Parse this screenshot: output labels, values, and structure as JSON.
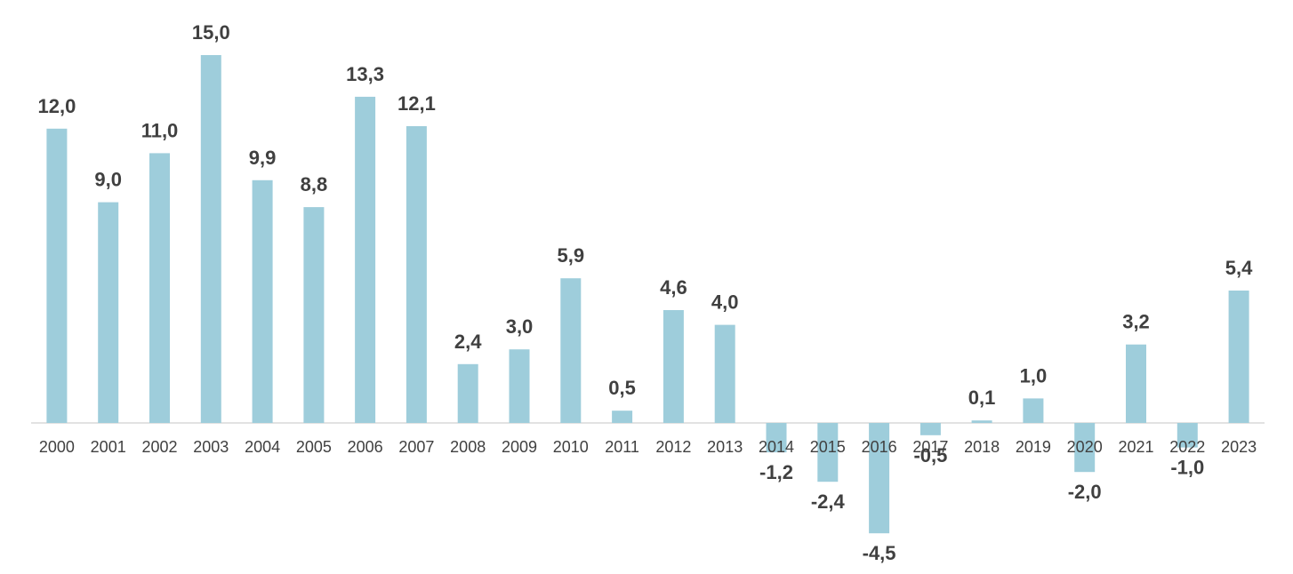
{
  "chart_data": {
    "type": "bar",
    "title": "",
    "xlabel": "",
    "ylabel": "",
    "categories": [
      "2000",
      "2001",
      "2002",
      "2003",
      "2004",
      "2005",
      "2006",
      "2007",
      "2008",
      "2009",
      "2010",
      "2011",
      "2012",
      "2013",
      "2014",
      "2015",
      "2016",
      "2017",
      "2018",
      "2019",
      "2020",
      "2021",
      "2022",
      "2023"
    ],
    "values": [
      12.0,
      9.0,
      11.0,
      15.0,
      9.9,
      8.8,
      13.3,
      12.1,
      2.4,
      3.0,
      5.9,
      0.5,
      4.6,
      4.0,
      -1.2,
      -2.4,
      -4.5,
      -0.5,
      0.1,
      1.0,
      -2.0,
      3.2,
      -1.0,
      5.4
    ],
    "data_labels": [
      "12,0",
      "9,0",
      "11,0",
      "15,0",
      "9,9",
      "8,8",
      "13,3",
      "12,1",
      "2,4",
      "3,0",
      "5,9",
      "0,5",
      "4,6",
      "4,0",
      "-1,2",
      "-2,4",
      "-4,5",
      "-0,5",
      "0,1",
      "1,0",
      "-2,0",
      "3,2",
      "-1,0",
      "5,4"
    ],
    "ylim": [
      -6,
      16
    ],
    "grid": false,
    "legend": "none",
    "colors": {
      "bar": "#9ecddb",
      "axis": "#d9d9d9",
      "text": "#404040"
    }
  }
}
